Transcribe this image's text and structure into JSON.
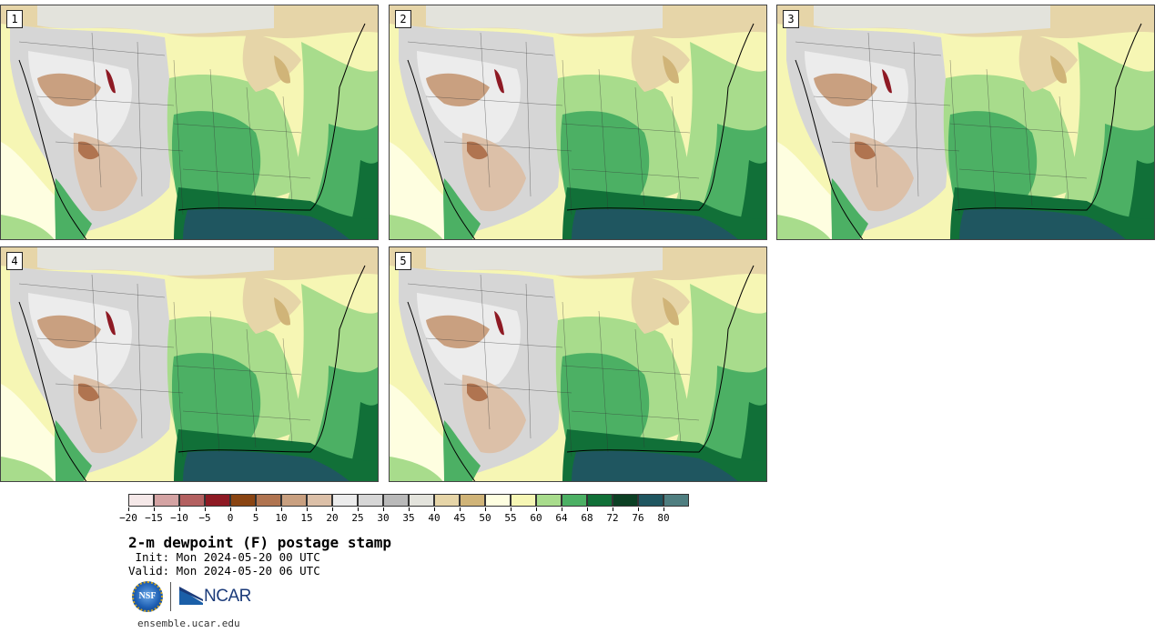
{
  "panels": [
    {
      "label": "1"
    },
    {
      "label": "2"
    },
    {
      "label": "3"
    },
    {
      "label": "4"
    },
    {
      "label": "5"
    }
  ],
  "colorbar": {
    "colors": [
      "#f5e8e8",
      "#d4a3a3",
      "#b36060",
      "#8e1a24",
      "#8a4513",
      "#b07450",
      "#c9a080",
      "#dcc0a8",
      "#ececec",
      "#d6d6d6",
      "#b9b9b9",
      "#e3e3dc",
      "#e6d5a8",
      "#d0b478",
      "#fefee0",
      "#f6f6b4",
      "#a8dc8c",
      "#4cb064",
      "#117038",
      "#0c4024",
      "#1f5660",
      "#4f7e80"
    ],
    "ticks": [
      "−20",
      "−15",
      "−10",
      "−5",
      "0",
      "5",
      "10",
      "15",
      "20",
      "25",
      "30",
      "35",
      "40",
      "45",
      "50",
      "55",
      "60",
      "64",
      "68",
      "72",
      "76",
      "80"
    ]
  },
  "title": "2-m dewpoint (F) postage stamp",
  "init": " Init: Mon 2024-05-20 00 UTC",
  "valid": "Valid: Mon 2024-05-20 06 UTC",
  "logos": {
    "nsf": "NSF",
    "ncar": "NCAR"
  },
  "site": "ensemble.ucar.edu"
}
